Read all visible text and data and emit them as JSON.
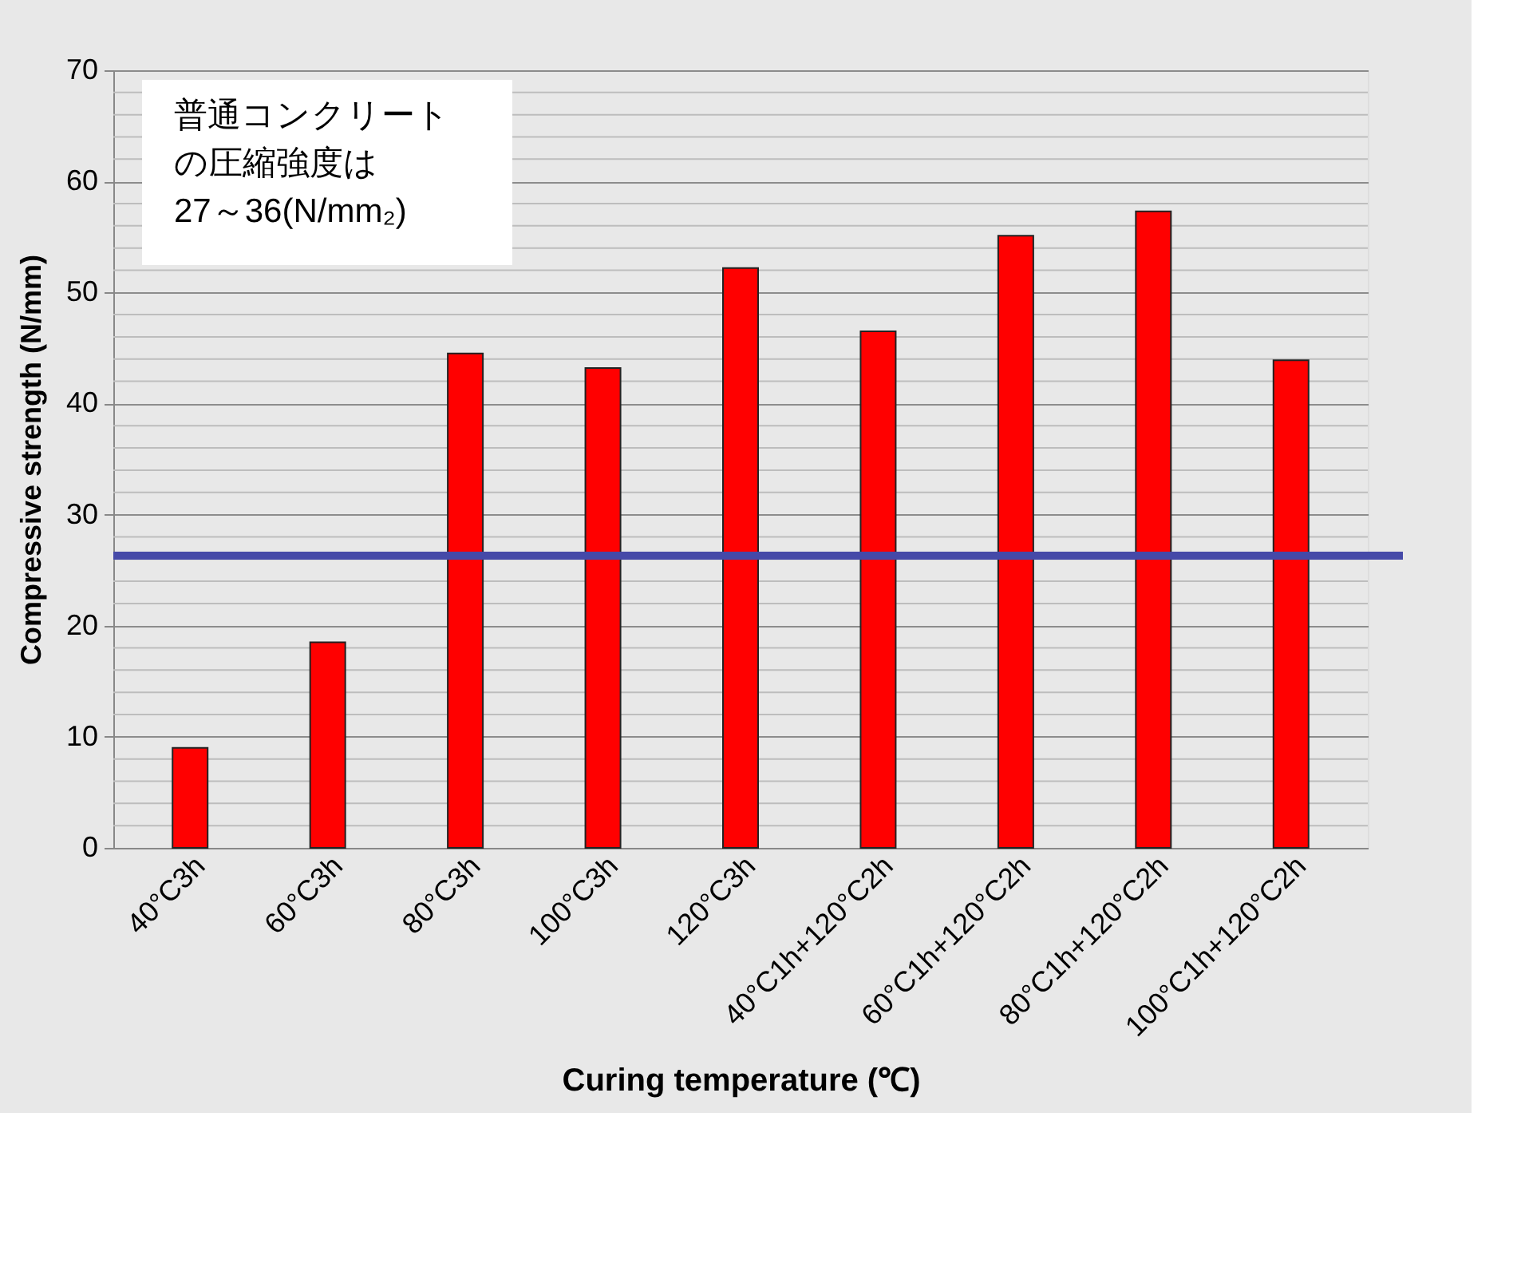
{
  "chart_data": {
    "type": "bar",
    "xlabel": "Curing temperature (℃)",
    "ylabel": "Compressive strength (N/mm)",
    "categories": [
      "40°C3h",
      "60°C3h",
      "80°C3h",
      "100°C3h",
      "120°C3h",
      "40°C1h+120°C2h",
      "60°C1h+120°C2h",
      "80°C1h+120°C2h",
      "100°C1h+120°C2h"
    ],
    "values": [
      9.0,
      18.5,
      44.5,
      43.2,
      52.2,
      46.5,
      55.1,
      57.3,
      43.9
    ],
    "color": "#ff0000",
    "ylim": [
      0,
      70
    ],
    "yticks": [
      0,
      {
        "value": 2,
        "label": null
      },
      {
        "value": 4,
        "label": null
      },
      {
        "value": 6,
        "label": null
      },
      {
        "value": 8,
        "label": null
      },
      10,
      {
        "value": 12,
        "label": null
      },
      {
        "value": 14,
        "label": null
      },
      {
        "value": 16,
        "label": null
      },
      {
        "value": 18,
        "label": null
      },
      20,
      {
        "value": 22,
        "label": null
      },
      {
        "value": 24,
        "label": null
      },
      {
        "value": 26,
        "label": null
      },
      {
        "value": 28,
        "label": null
      },
      30,
      {
        "value": 32,
        "label": null
      },
      {
        "value": 34,
        "label": null
      },
      {
        "value": 36,
        "label": null
      },
      {
        "value": 38,
        "label": null
      },
      40,
      {
        "value": 42,
        "label": null
      },
      {
        "value": 44,
        "label": null
      },
      {
        "value": 46,
        "label": null
      },
      {
        "value": 48,
        "label": null
      },
      50,
      {
        "value": 52,
        "label": null
      },
      {
        "value": 54,
        "label": null
      },
      {
        "value": 56,
        "label": null
      },
      {
        "value": 58,
        "label": null
      },
      60,
      {
        "value": 62,
        "label": null
      },
      {
        "value": 64,
        "label": null
      },
      {
        "value": 66,
        "label": null
      },
      {
        "value": 68,
        "label": null
      },
      70
    ],
    "grid": "y",
    "ref_lines": [
      {
        "axis": "y",
        "value": 26.3,
        "color": "#4549a8",
        "line_style": "solid"
      }
    ],
    "annotations": [
      "普通コンクリートの圧縮強度は27～36(N/mm₂)"
    ]
  }
}
